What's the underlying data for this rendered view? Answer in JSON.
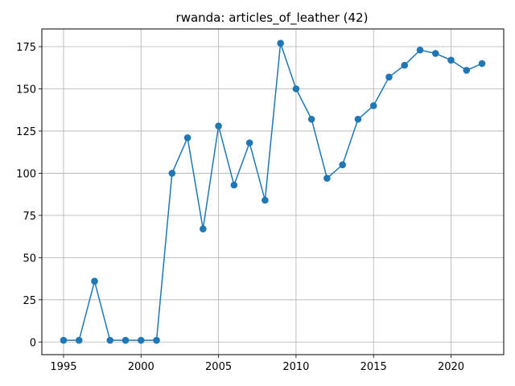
{
  "chart_data": {
    "type": "line",
    "title": "rwanda: articles_of_leather (42)",
    "xlabel": "",
    "ylabel": "",
    "xlim": [
      1993.6,
      2023.4
    ],
    "ylim": [
      -7.5,
      185.5
    ],
    "xticks": [
      1995,
      2000,
      2005,
      2010,
      2015,
      2020
    ],
    "yticks": [
      0,
      25,
      50,
      75,
      100,
      125,
      150,
      175
    ],
    "grid": true,
    "series": [
      {
        "color": "#1f77b4",
        "marker": "circle",
        "x": [
          1995,
          1996,
          1997,
          1998,
          1999,
          2000,
          2001,
          2002,
          2003,
          2004,
          2005,
          2006,
          2007,
          2008,
          2009,
          2010,
          2011,
          2012,
          2013,
          2014,
          2015,
          2016,
          2017,
          2018,
          2019,
          2020,
          2021,
          2022
        ],
        "y": [
          1,
          1,
          36,
          1,
          1,
          1,
          1,
          100,
          121,
          67,
          128,
          93,
          118,
          84,
          177,
          150,
          132,
          97,
          105,
          132,
          140,
          157,
          164,
          173,
          171,
          167,
          161,
          165
        ]
      }
    ]
  }
}
